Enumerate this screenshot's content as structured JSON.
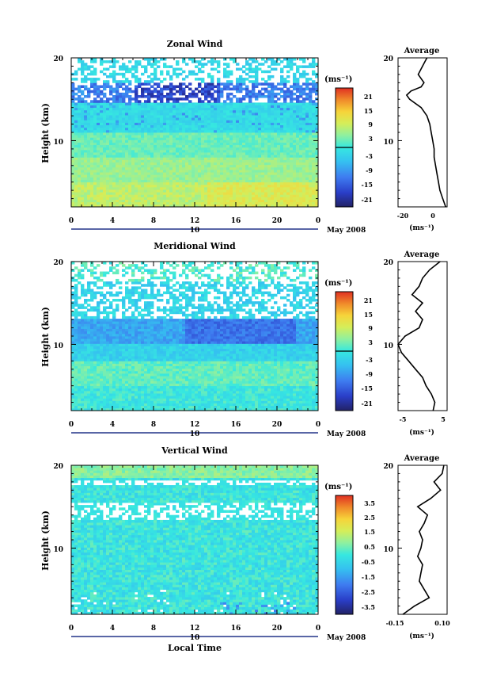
{
  "date_label": "May 2008",
  "local_time_label": "Local Time",
  "day_label": "10",
  "colorbar_unit": "(ms⁻¹)",
  "profile_unit": "(ms⁻¹)",
  "panels": [
    {
      "title": "Zonal Wind",
      "ylabel": "Height (km)",
      "profile_title": "Average",
      "colorbar_ticks": [
        "21",
        "15",
        "9",
        "3",
        "-3",
        "-9",
        "-15",
        "-21"
      ],
      "profile_xticks": [
        "-20",
        "0"
      ]
    },
    {
      "title": "Meridional Wind",
      "ylabel": "Height (km)",
      "profile_title": "Average",
      "colorbar_ticks": [
        "21",
        "15",
        "9",
        "3",
        "-3",
        "-9",
        "-15",
        "-21"
      ],
      "profile_xticks": [
        "-5",
        "5"
      ]
    },
    {
      "title": "Vertical Wind",
      "ylabel": "Height (km)",
      "profile_title": "Average",
      "colorbar_ticks": [
        "3.5",
        "2.5",
        "1.5",
        "0.5",
        "-0.5",
        "-1.5",
        "-2.5",
        "-3.5"
      ],
      "profile_xticks": [
        "-0.15",
        "0.10"
      ]
    }
  ],
  "chart_data": [
    {
      "type": "heatmap",
      "title": "Zonal Wind",
      "ylabel": "Height (km)",
      "x_ticks": [
        "0",
        "4",
        "8",
        "12",
        "16",
        "20",
        "0"
      ],
      "y_ticks": [
        "20",
        "10"
      ],
      "xlim": [
        0,
        24
      ],
      "ylim": [
        2,
        20
      ],
      "colorbar_range": [
        -24,
        24
      ],
      "profile": {
        "title": "Average",
        "xticks": [
          "-20",
          "0"
        ],
        "xlim": [
          -26,
          8
        ],
        "heights": [
          2,
          3,
          4,
          5,
          6,
          7,
          8,
          9,
          10,
          11,
          12,
          13,
          14,
          15,
          15.5,
          16,
          16.5,
          17,
          18,
          19,
          20
        ],
        "values": [
          7,
          5,
          3,
          2,
          1,
          0,
          -1,
          -1,
          -2,
          -3,
          -4,
          -6,
          -10,
          -18,
          -20,
          -17,
          -10,
          -8,
          -12,
          -9,
          -6
        ]
      }
    },
    {
      "type": "heatmap",
      "title": "Meridional Wind",
      "ylabel": "Height (km)",
      "x_ticks": [
        "0",
        "4",
        "8",
        "12",
        "16",
        "20",
        "0"
      ],
      "y_ticks": [
        "20",
        "10"
      ],
      "xlim": [
        0,
        24
      ],
      "ylim": [
        2,
        20
      ],
      "colorbar_range": [
        -24,
        24
      ],
      "profile": {
        "title": "Average",
        "xticks": [
          "-5",
          "5"
        ],
        "xlim": [
          -8,
          6
        ],
        "heights": [
          2,
          3,
          4,
          5,
          6,
          7,
          8,
          9,
          10,
          11,
          12,
          13,
          14,
          15,
          16,
          17,
          18,
          19,
          20
        ],
        "values": [
          2,
          2.5,
          1.5,
          0,
          -1,
          -3,
          -5,
          -7,
          -8,
          -6,
          -2,
          -1,
          -3,
          -1,
          -4,
          -2,
          -1,
          1,
          4
        ]
      }
    },
    {
      "type": "heatmap",
      "title": "Vertical Wind",
      "ylabel": "Height (km)",
      "x_label": "Local Time",
      "x_ticks": [
        "0",
        "4",
        "8",
        "12",
        "16",
        "20",
        "0"
      ],
      "y_ticks": [
        "20",
        "10"
      ],
      "xlim": [
        0,
        24
      ],
      "ylim": [
        2,
        20
      ],
      "colorbar_range": [
        -4,
        4
      ],
      "profile": {
        "title": "Average",
        "xticks": [
          "-0.15",
          "0.10"
        ],
        "xlim": [
          -0.18,
          0.12
        ],
        "heights": [
          2,
          3,
          4,
          5,
          6,
          7,
          8,
          9,
          10,
          11,
          12,
          13,
          14,
          15,
          16,
          17,
          18,
          19,
          20
        ],
        "values": [
          -0.15,
          -0.08,
          0.01,
          -0.02,
          -0.05,
          -0.04,
          -0.03,
          -0.06,
          -0.04,
          -0.03,
          -0.05,
          -0.02,
          0.0,
          -0.06,
          0.02,
          0.08,
          0.04,
          0.09,
          0.1
        ]
      }
    }
  ]
}
